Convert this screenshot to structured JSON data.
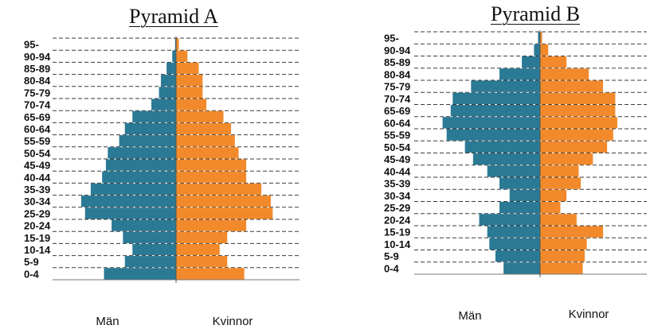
{
  "chart_data": [
    {
      "type": "bar",
      "orientation": "horizontal",
      "layout": "population-pyramid",
      "title": "Pyramid A",
      "categories": [
        "0-4",
        "5-9",
        "10-14",
        "15-19",
        "20-24",
        "25-29",
        "30-34",
        "35-39",
        "40-44",
        "45-49",
        "50-54",
        "55-59",
        "60-64",
        "65-69",
        "70-74",
        "75-79",
        "80-84",
        "85-89",
        "90-94",
        "95-"
      ],
      "series": [
        {
          "name": "Män",
          "color": "#2b7a95",
          "values": [
            3.8,
            2.7,
            2.3,
            2.8,
            3.4,
            4.8,
            5.0,
            4.5,
            3.9,
            3.7,
            3.6,
            3.0,
            2.7,
            2.3,
            1.3,
            0.9,
            0.8,
            0.5,
            0.2,
            0.05
          ]
        },
        {
          "name": "Kvinnor",
          "color": "#f28a2c",
          "values": [
            3.6,
            2.7,
            2.3,
            2.7,
            3.7,
            5.1,
            5.0,
            4.5,
            3.7,
            3.7,
            3.3,
            3.1,
            2.9,
            2.5,
            1.6,
            1.4,
            1.4,
            1.2,
            0.6,
            0.15
          ]
        }
      ]
    },
    {
      "type": "bar",
      "orientation": "horizontal",
      "layout": "population-pyramid",
      "title": "Pyramid B",
      "categories": [
        "0-4",
        "5-9",
        "10-14",
        "15-19",
        "20-24",
        "25-29",
        "30-34",
        "35-39",
        "40-44",
        "45-49",
        "50-54",
        "55-59",
        "60-64",
        "65-69",
        "70-74",
        "75-79",
        "80-84",
        "85-89",
        "90-94",
        "95-"
      ],
      "series": [
        {
          "name": "Män",
          "color": "#2b7a95",
          "values": [
            1.8,
            2.2,
            2.5,
            2.6,
            3.0,
            2.0,
            1.5,
            2.0,
            2.6,
            3.3,
            3.7,
            4.6,
            4.8,
            4.4,
            4.3,
            3.4,
            2.0,
            0.9,
            0.3,
            0.1
          ]
        },
        {
          "name": "Kvinnor",
          "color": "#f28a2c",
          "values": [
            2.1,
            2.2,
            2.3,
            3.1,
            1.8,
            1.0,
            1.3,
            2.0,
            1.9,
            2.6,
            3.3,
            3.6,
            3.8,
            3.7,
            3.7,
            3.1,
            2.4,
            1.3,
            0.4,
            0.1
          ]
        }
      ]
    }
  ],
  "legend": {
    "men": "Män",
    "women": "Kvinnor"
  }
}
